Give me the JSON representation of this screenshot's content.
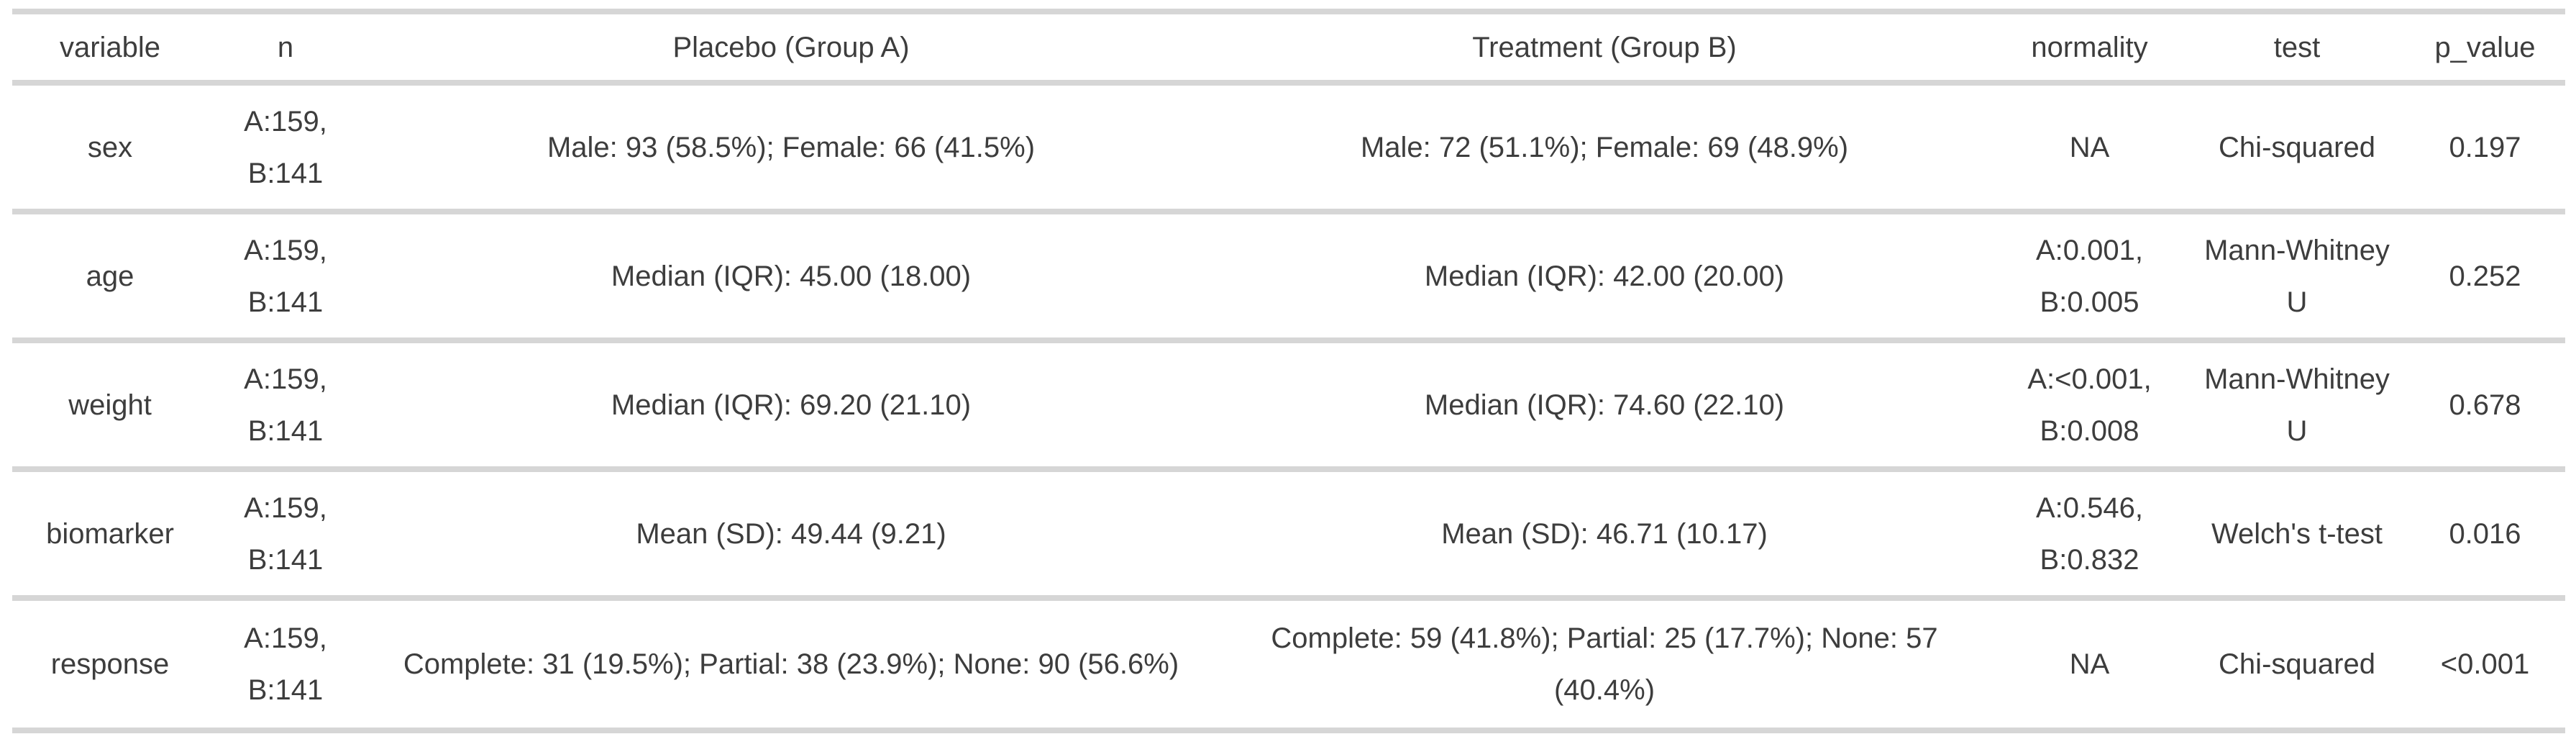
{
  "table": {
    "title": "group-comparison-summary",
    "columns": [
      {
        "key": "variable",
        "label": "variable"
      },
      {
        "key": "n",
        "label": "n"
      },
      {
        "key": "placebo",
        "label": "Placebo (Group A)"
      },
      {
        "key": "treatment",
        "label": "Treatment (Group B)"
      },
      {
        "key": "normality",
        "label": "normality"
      },
      {
        "key": "test",
        "label": "test"
      },
      {
        "key": "p_value",
        "label": "p_value"
      }
    ],
    "rows": [
      {
        "variable": "sex",
        "n": "A:159, B:141",
        "placebo": "Male: 93 (58.5%); Female: 66 (41.5%)",
        "treatment": "Male: 72 (51.1%); Female: 69 (48.9%)",
        "normality": "NA",
        "test": "Chi-squared",
        "p_value": "0.197"
      },
      {
        "variable": "age",
        "n": "A:159, B:141",
        "placebo": "Median (IQR): 45.00 (18.00)",
        "treatment": "Median (IQR): 42.00 (20.00)",
        "normality": "A:0.001, B:0.005",
        "test": "Mann-Whitney U",
        "p_value": "0.252"
      },
      {
        "variable": "weight",
        "n": "A:159, B:141",
        "placebo": "Median (IQR): 69.20 (21.10)",
        "treatment": "Median (IQR): 74.60 (22.10)",
        "normality": "A:<0.001, B:0.008",
        "test": "Mann-Whitney U",
        "p_value": "0.678"
      },
      {
        "variable": "biomarker",
        "n": "A:159, B:141",
        "placebo": "Mean (SD): 49.44 (9.21)",
        "treatment": "Mean (SD): 46.71 (10.17)",
        "normality": "A:0.546, B:0.832",
        "test": "Welch's t-test",
        "p_value": "0.016"
      },
      {
        "variable": "response",
        "n": "A:159, B:141",
        "placebo": "Complete: 31 (19.5%); Partial: 38 (23.9%); None: 90 (56.6%)",
        "treatment": "Complete: 59 (41.8%); Partial: 25 (17.7%); None: 57 (40.4%)",
        "normality": "NA",
        "test": "Chi-squared",
        "p_value": "<0.001"
      }
    ]
  },
  "colors": {
    "background": "#ffffff",
    "divider": "#d6d6d6",
    "text": "#3d3d3d"
  }
}
